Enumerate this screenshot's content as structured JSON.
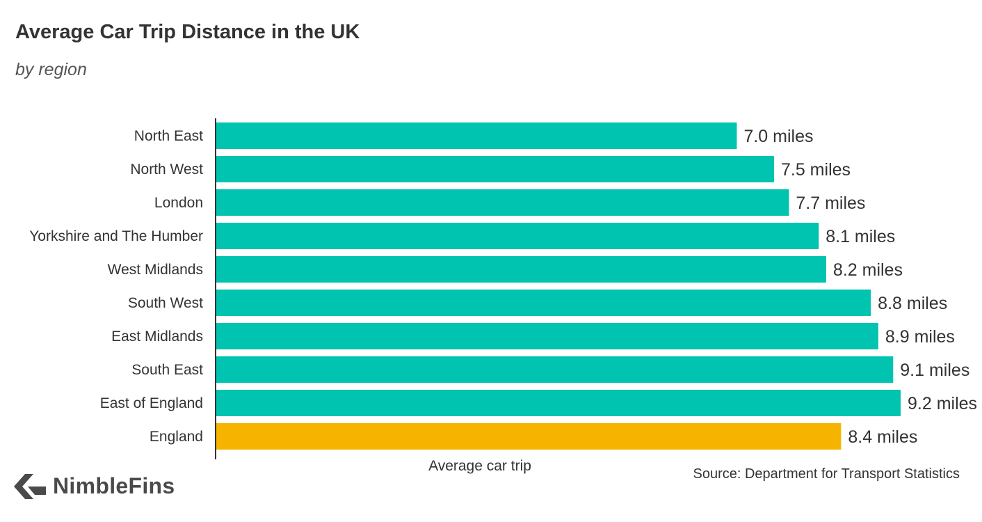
{
  "header": {
    "title": "Average Car Trip Distance in the UK",
    "subtitle": "by region"
  },
  "footer": {
    "source": "Source: Department for Transport Statistics",
    "brand": "NimbleFins"
  },
  "colors": {
    "region_bar": "#00c4b0",
    "england_bar": "#f6b400",
    "axis": "#333333",
    "logo_mark": "#4a4a4a"
  },
  "icons": {
    "logo": "nimblefins-chevron-icon"
  },
  "chart_data": {
    "type": "bar",
    "orientation": "horizontal",
    "title": "Average Car Trip Distance in the UK",
    "subtitle": "by region",
    "xlabel": "Average car trip",
    "ylabel": "",
    "xlim": [
      0,
      9.2
    ],
    "grid": false,
    "legend": "none",
    "unit_suffix": " miles",
    "categories": [
      "North East",
      "North West",
      "London",
      "Yorkshire and The Humber",
      "West Midlands",
      "South West",
      "East Midlands",
      "South East",
      "East of England",
      "England"
    ],
    "values": [
      7.0,
      7.5,
      7.7,
      8.1,
      8.2,
      8.8,
      8.9,
      9.1,
      9.2,
      8.4
    ],
    "value_labels": [
      "7.0 miles",
      "7.5 miles",
      "7.7 miles",
      "8.1 miles",
      "8.2 miles",
      "8.8 miles",
      "8.9 miles",
      "9.1 miles",
      "9.2 miles",
      "8.4 miles"
    ],
    "highlight": "England"
  }
}
